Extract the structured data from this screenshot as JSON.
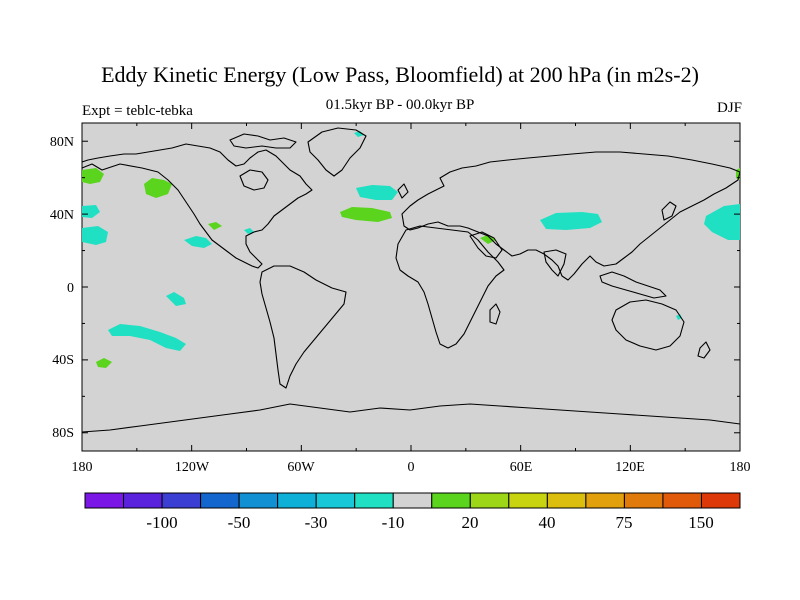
{
  "title": "Eddy Kinetic Energy (Low Pass, Bloomfield) at 200 hPa (in m2s-2)",
  "subtitle": "01.5kyr BP - 00.0kyr BP",
  "left_label": "Expt = teblc-tebka",
  "right_label": "DJF",
  "map": {
    "background_color": "#d3d3d3",
    "x_ticks": [
      "180",
      "120W",
      "60W",
      "0",
      "60E",
      "120E",
      "180"
    ],
    "y_ticks": [
      "80N",
      "40N",
      "0",
      "40S",
      "80S"
    ]
  },
  "colorbar": {
    "colors": [
      "#7a16e6",
      "#5a22dd",
      "#3a3ed3",
      "#1466cf",
      "#1190d4",
      "#0fb0d8",
      "#19c8d8",
      "#1fe0c3",
      "#d3d3d3",
      "#5ad41c",
      "#9cd616",
      "#c8d410",
      "#dcbf0e",
      "#e2a00c",
      "#e07a0a",
      "#e05a0a",
      "#dc3808"
    ],
    "labels": [
      "-100",
      "-50",
      "-30",
      "-10",
      "20",
      "40",
      "75",
      "150"
    ]
  }
}
